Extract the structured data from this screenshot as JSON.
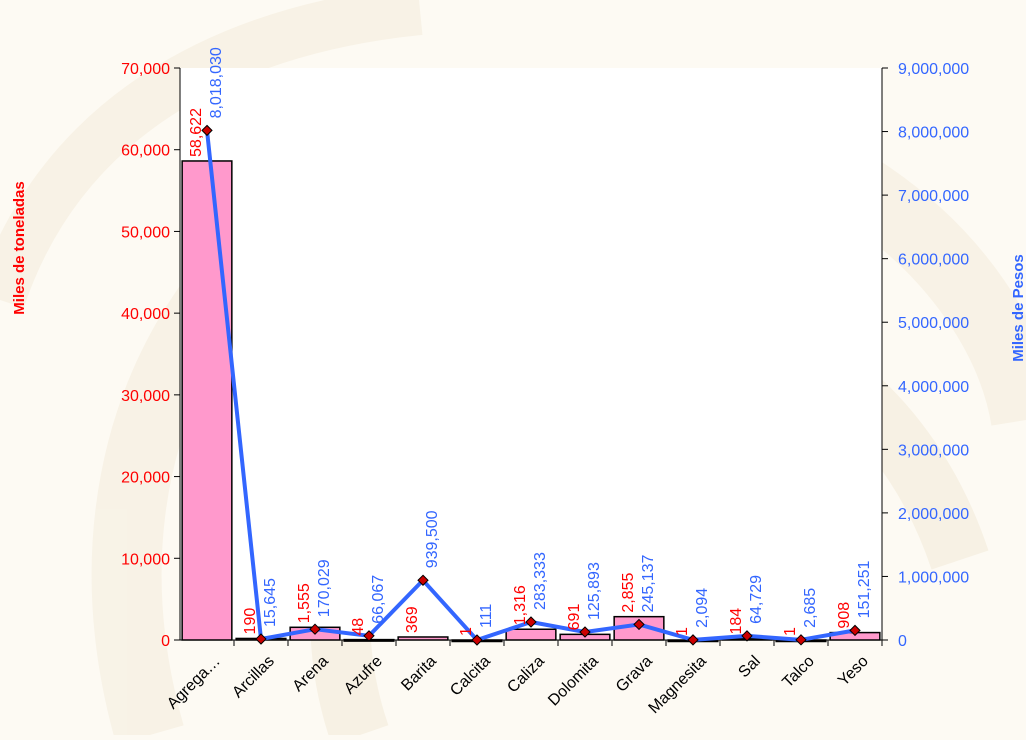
{
  "chart_data": {
    "type": "bar",
    "categories": [
      "Agrega…",
      "Arcillas",
      "Arena",
      "Azufre",
      "Barita",
      "Calcita",
      "Caliza",
      "Dolomita",
      "Grava",
      "Magnesita",
      "Sal",
      "Talco",
      "Yeso"
    ],
    "series": [
      {
        "type": "bar",
        "axis": "left",
        "color": "#ff99cc",
        "values": [
          58622,
          190,
          1555,
          48,
          369,
          1,
          1316,
          691,
          2855,
          1,
          184,
          1,
          908
        ],
        "labels": [
          "58,622",
          "190",
          "1,555",
          "48",
          "369",
          "1",
          "1,316",
          "691",
          "2,855",
          "1",
          "184",
          "1",
          "908"
        ]
      },
      {
        "type": "line",
        "axis": "right",
        "color": "#3366ff",
        "marker_color": "#cc0000",
        "values": [
          8018030,
          15645,
          170029,
          66067,
          939500,
          111,
          283333,
          125893,
          245137,
          2094,
          64729,
          2685,
          151251
        ],
        "labels": [
          "8,018,030",
          "15,645",
          "170,029",
          "66,067",
          "939,500",
          "111",
          "283,333",
          "125,893",
          "245,137",
          "2,094",
          "64,729",
          "2,685",
          "151,251"
        ]
      }
    ],
    "ylabel": "Miles de toneladas",
    "y2label": "Miles de Pesos",
    "ylim": [
      0,
      70000
    ],
    "y2lim": [
      0,
      9000000
    ],
    "yticks": [
      "0",
      "10,000",
      "20,000",
      "30,000",
      "40,000",
      "50,000",
      "60,000",
      "70,000"
    ],
    "y2ticks": [
      "0",
      "1,000,000",
      "2,000,000",
      "3,000,000",
      "4,000,000",
      "5,000,000",
      "6,000,000",
      "7,000,000",
      "8,000,000",
      "9,000,000"
    ],
    "grid": false,
    "legend": "none"
  }
}
